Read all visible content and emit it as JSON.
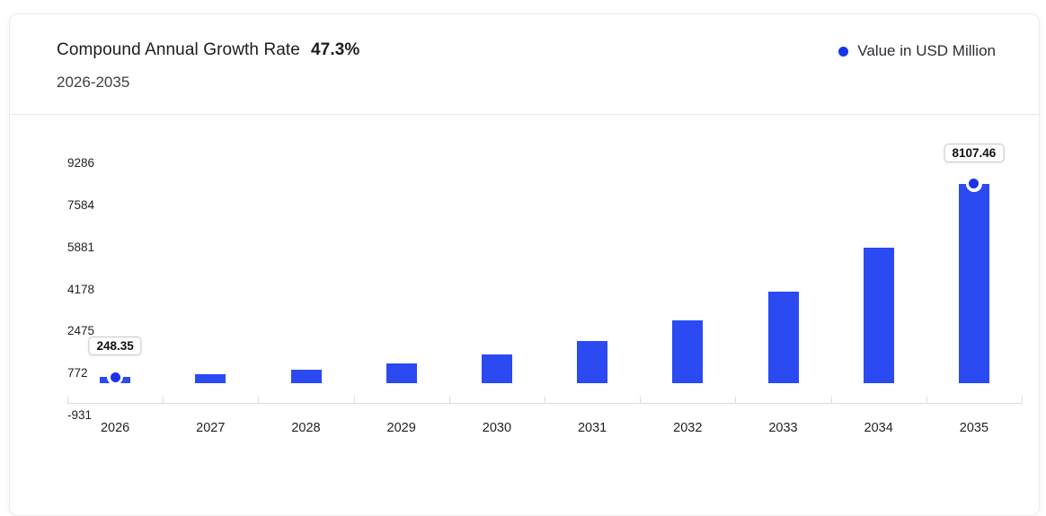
{
  "header": {
    "title": "Compound Annual Growth Rate",
    "cagr_value": "47.3%",
    "subtitle": "2026-2035",
    "legend": {
      "label": "Value in USD Million",
      "dot_color": "#1534ee"
    }
  },
  "chart_data": {
    "type": "bar",
    "title": "Compound Annual Growth Rate 47.3%",
    "subtitle": "2026-2035",
    "unit": "USD Million",
    "categories": [
      "2026",
      "2027",
      "2028",
      "2029",
      "2030",
      "2031",
      "2032",
      "2033",
      "2034",
      "2035"
    ],
    "values": [
      248.35,
      365.82,
      538.85,
      793.73,
      1169.16,
      1722.17,
      2536.76,
      3736.65,
      5504.08,
      8107.46
    ],
    "y_ticks": [
      9286,
      7584,
      5881,
      4178,
      2475,
      772,
      -931
    ],
    "ylim": [
      -931,
      9286
    ],
    "xlabel": "",
    "ylabel": "",
    "grid": false,
    "legend_position": "top-right",
    "legend_entries": [
      "Value in USD Million"
    ],
    "bar_color": "#2b4af1",
    "marker_color": "#1a33e8",
    "annotations": [
      {
        "category": "2026",
        "label": "248.35"
      },
      {
        "category": "2035",
        "label": "8107.46"
      }
    ]
  }
}
